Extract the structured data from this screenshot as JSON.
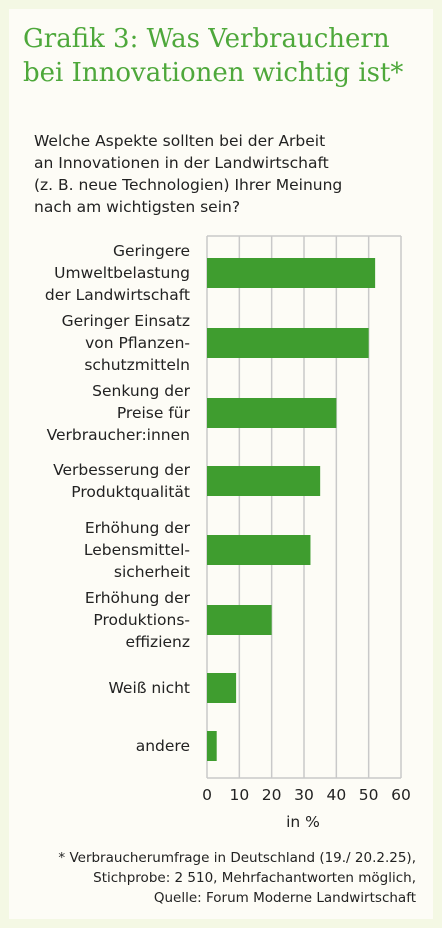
{
  "title_lines": [
    "Grafik 3: Was Verbrauchern",
    "bei Innovationen wichtig ist*"
  ],
  "question_lines": [
    "Welche Aspekte sollten bei der Arbeit",
    "an  Innovationen in der Landwirtschaft",
    "(z. B. neue Technologien) Ihrer Meinung",
    "nach am  wichtigsten sein?"
  ],
  "chart_data": {
    "type": "bar",
    "orientation": "horizontal",
    "categories": [
      [
        "Geringere",
        "Umweltbelastung",
        "der Landwirtschaft"
      ],
      [
        "Geringer Einsatz",
        "von Pflanzen-",
        "schutzmitteln"
      ],
      [
        "Senkung der",
        "Preise für",
        "Verbraucher:innen"
      ],
      [
        "Verbesserung der",
        "Produktqualität"
      ],
      [
        "Erhöhung der",
        "Lebensmittel-",
        "sicherheit"
      ],
      [
        "Erhöhung der",
        "Produktions-",
        "effizienz"
      ],
      [
        "Weiß nicht"
      ],
      [
        "andere"
      ]
    ],
    "values": [
      52,
      50,
      40,
      35,
      32,
      20,
      9,
      3
    ],
    "xlim": [
      0,
      60
    ],
    "xticks": [
      "0",
      "10",
      "20",
      "30",
      "40",
      "50",
      "60"
    ],
    "xlabel": "in %",
    "grid": "vertical",
    "bar_color": "#3f9d2f"
  },
  "footnote_lines": [
    "* Verbraucherumfrage in Deutschland (19./ 20.2.25),",
    "Stichprobe: 2 510, Mehrfachantworten möglich,",
    "Quelle: Forum Moderne Landwirtschaft"
  ]
}
